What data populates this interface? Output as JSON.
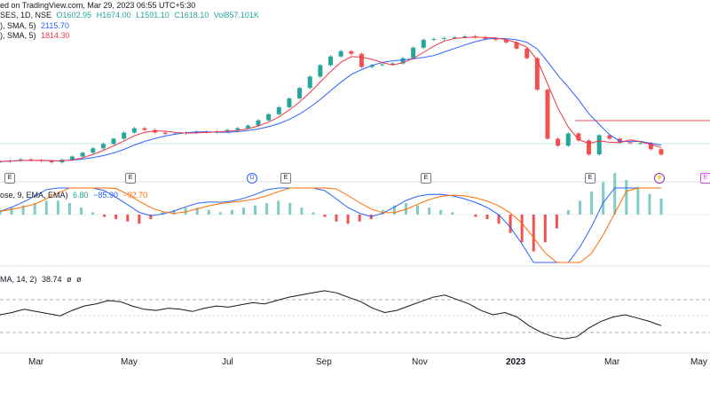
{
  "header": {
    "source": "ed on TradingView.com, Mar 29, 2023 06:55 UTC+5:30",
    "symbol": "SES, 1D, NSE",
    "ohlc": {
      "o": "O1602.95",
      "h": "H1674.00",
      "l": "L1591.10",
      "c": "C1618.10",
      "vol": "Vol857.101K"
    },
    "ma1_label": "), SMA, 5)",
    "ma1_value": "2115.70",
    "ma2_label": "), SMA, 5)",
    "ma2_value": "1814.30"
  },
  "macd": {
    "label": "ose, 9, EMA, EMA)",
    "hist": "6.80",
    "macd": "−85.90",
    "signal": "−92.70"
  },
  "rsi": {
    "label": "MA, 14, 2)",
    "value": "38.74",
    "ext1": "ø",
    "ext2": "ø"
  },
  "months": [
    "Mar",
    "May",
    "Jul",
    "Sep",
    "Nov",
    "2023",
    "Mar",
    "May"
  ],
  "markers": [
    {
      "t": "E",
      "kind": "earn"
    },
    {
      "t": "E",
      "kind": "earn"
    },
    {
      "t": "D",
      "kind": "dividend"
    },
    {
      "t": "E",
      "kind": "earn"
    },
    {
      "t": "E",
      "kind": "earn"
    },
    {
      "t": "E",
      "kind": "earn"
    },
    {
      "t": "⚡",
      "kind": "split"
    },
    {
      "t": "E",
      "kind": "future"
    }
  ],
  "colors": {
    "up": "#26a69a",
    "down": "#ef5350",
    "ma1": "#2962ff",
    "ma2": "#f23645",
    "macd": "#2962ff",
    "signal": "#ff6d00",
    "rsi": "#131722",
    "hline": "#f7525f"
  },
  "chart_data": {
    "type": "candlestick",
    "price_series_approx": [
      1290,
      1295,
      1302,
      1298,
      1292,
      1285,
      1300,
      1318,
      1340,
      1365,
      1390,
      1420,
      1455,
      1480,
      1470,
      1455,
      1448,
      1450,
      1455,
      1460,
      1458,
      1462,
      1470,
      1480,
      1495,
      1525,
      1560,
      1600,
      1650,
      1710,
      1775,
      1840,
      1890,
      1920,
      1905,
      1830,
      1840,
      1845,
      1850,
      1880,
      1940,
      1985,
      1990,
      1995,
      2000,
      2005,
      2000,
      1990,
      1985,
      1970,
      1935,
      1880,
      1700,
      1420,
      1380,
      1450,
      1410,
      1330,
      1440,
      1420,
      1400,
      1395,
      1395,
      1360,
      1330
    ],
    "hline_value": "resistance line",
    "macd_hist": [
      2,
      3,
      4,
      5,
      6,
      6,
      5,
      3,
      1,
      -1,
      -2,
      -3,
      -4,
      -2,
      1,
      2,
      3,
      3,
      2,
      1,
      2,
      3,
      4,
      5,
      6,
      5,
      3,
      1,
      -1,
      -3,
      -4,
      -3,
      -2,
      2,
      4,
      5,
      4,
      3,
      2,
      1,
      0,
      -1,
      -2,
      -4,
      -8,
      -12,
      -16,
      -12,
      -6,
      2,
      6,
      10,
      14,
      18,
      15,
      12,
      9,
      7
    ],
    "rsi_approx": [
      50,
      52,
      55,
      53,
      51,
      49,
      54,
      58,
      60,
      63,
      62,
      58,
      55,
      54,
      56,
      55,
      53,
      56,
      58,
      57,
      59,
      61,
      60,
      63,
      66,
      68,
      70,
      72,
      70,
      66,
      62,
      56,
      52,
      54,
      58,
      62,
      66,
      68,
      64,
      60,
      54,
      50,
      52,
      48,
      40,
      34,
      30,
      28,
      30,
      38,
      44,
      48,
      50,
      47,
      44,
      40
    ]
  }
}
